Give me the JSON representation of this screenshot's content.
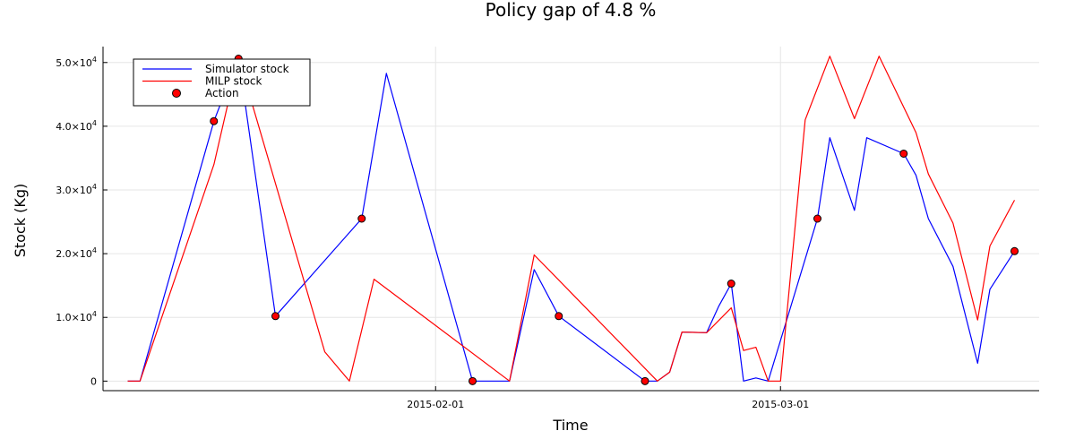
{
  "chart_data": {
    "type": "line",
    "title": "Policy gap of 4.8 %",
    "xlabel": "Time",
    "ylabel": "Stock (Kg)",
    "x_ticks": [
      "2015-02-01",
      "2015-03-01"
    ],
    "y_ticks": [
      {
        "value": 0,
        "mantissa": "0",
        "exponent": ""
      },
      {
        "value": 10000,
        "mantissa": "1.0×10",
        "exponent": "4"
      },
      {
        "value": 20000,
        "mantissa": "2.0×10",
        "exponent": "4"
      },
      {
        "value": 30000,
        "mantissa": "3.0×10",
        "exponent": "4"
      },
      {
        "value": 40000,
        "mantissa": "4.0×10",
        "exponent": "4"
      },
      {
        "value": 50000,
        "mantissa": "5.0×10",
        "exponent": "4"
      }
    ],
    "xlim": [
      "2015-01-05",
      "2015-03-22"
    ],
    "ylim": [
      -1500,
      52500
    ],
    "grid": true,
    "legend_position": "top-left",
    "series": [
      {
        "name": "Simulator stock",
        "color": "#0000ff",
        "kind": "line",
        "points": [
          [
            "2015-01-07",
            0
          ],
          [
            "2015-01-08",
            0
          ],
          [
            "2015-01-14",
            40800
          ],
          [
            "2015-01-16",
            50800
          ],
          [
            "2015-01-19",
            10200
          ],
          [
            "2015-01-26",
            25500
          ],
          [
            "2015-01-28",
            48300
          ],
          [
            "2015-02-04",
            0
          ],
          [
            "2015-02-07",
            0
          ],
          [
            "2015-02-09",
            17500
          ],
          [
            "2015-02-11",
            10200
          ],
          [
            "2015-02-18",
            0
          ],
          [
            "2015-02-19",
            0
          ],
          [
            "2015-02-20",
            1400
          ],
          [
            "2015-02-21",
            7700
          ],
          [
            "2015-02-23",
            7600
          ],
          [
            "2015-02-24",
            11800
          ],
          [
            "2015-02-25",
            15300
          ],
          [
            "2015-02-26",
            0
          ],
          [
            "2015-02-27",
            500
          ],
          [
            "2015-02-28",
            0
          ],
          [
            "2015-03-04",
            25500
          ],
          [
            "2015-03-05",
            38200
          ],
          [
            "2015-03-07",
            26800
          ],
          [
            "2015-03-08",
            38200
          ],
          [
            "2015-03-11",
            35700
          ],
          [
            "2015-03-12",
            32300
          ],
          [
            "2015-03-13",
            25500
          ],
          [
            "2015-03-15",
            18000
          ],
          [
            "2015-03-17",
            2800
          ],
          [
            "2015-03-18",
            14400
          ],
          [
            "2015-03-20",
            20400
          ]
        ]
      },
      {
        "name": "MILP stock",
        "color": "#ff0000",
        "kind": "line",
        "points": [
          [
            "2015-01-07",
            0
          ],
          [
            "2015-01-08",
            0
          ],
          [
            "2015-01-14",
            34000
          ],
          [
            "2015-01-16",
            50800
          ],
          [
            "2015-01-23",
            4600
          ],
          [
            "2015-01-25",
            0
          ],
          [
            "2015-01-27",
            16000
          ],
          [
            "2015-02-07",
            0
          ],
          [
            "2015-02-09",
            19800
          ],
          [
            "2015-02-19",
            0
          ],
          [
            "2015-02-20",
            1400
          ],
          [
            "2015-02-21",
            7700
          ],
          [
            "2015-02-23",
            7600
          ],
          [
            "2015-02-25",
            11500
          ],
          [
            "2015-02-26",
            4800
          ],
          [
            "2015-02-27",
            5300
          ],
          [
            "2015-02-28",
            0
          ],
          [
            "2015-03-01",
            0
          ],
          [
            "2015-03-03",
            41000
          ],
          [
            "2015-03-05",
            51000
          ],
          [
            "2015-03-07",
            41200
          ],
          [
            "2015-03-09",
            51000
          ],
          [
            "2015-03-12",
            39000
          ],
          [
            "2015-03-13",
            32500
          ],
          [
            "2015-03-15",
            24800
          ],
          [
            "2015-03-17",
            9600
          ],
          [
            "2015-03-18",
            21200
          ],
          [
            "2015-03-20",
            28400
          ]
        ]
      },
      {
        "name": "Action",
        "color": "#ff0000",
        "kind": "scatter",
        "points": [
          [
            "2015-01-14",
            40800
          ],
          [
            "2015-01-16",
            50600
          ],
          [
            "2015-01-19",
            10200
          ],
          [
            "2015-01-26",
            25500
          ],
          [
            "2015-02-04",
            0
          ],
          [
            "2015-02-11",
            10200
          ],
          [
            "2015-02-18",
            0
          ],
          [
            "2015-02-25",
            15300
          ],
          [
            "2015-03-04",
            25500
          ],
          [
            "2015-03-11",
            35700
          ],
          [
            "2015-03-20",
            20400
          ]
        ]
      }
    ]
  }
}
